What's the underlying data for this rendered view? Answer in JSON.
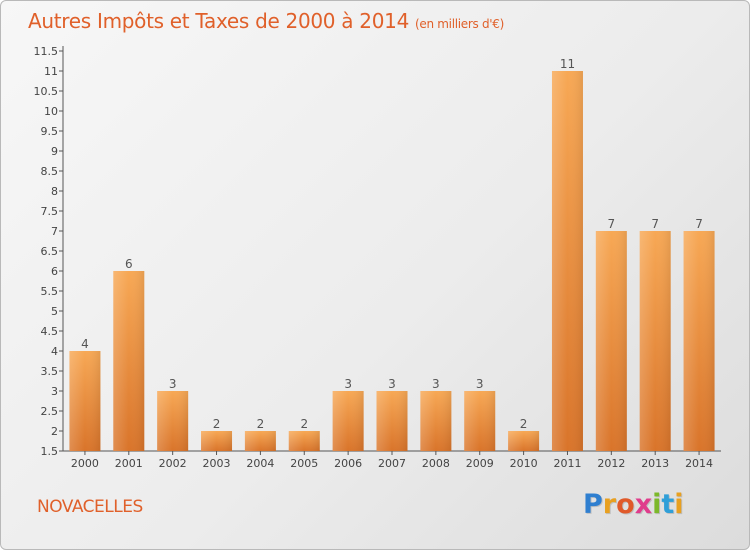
{
  "header": {
    "title": "Autres Impôts et Taxes de 2000 à 2014",
    "subtitle": "(en milliers d'€)"
  },
  "footer": {
    "town": "NOVACELLES",
    "logo_letters": [
      "P",
      "r",
      "o",
      "x",
      "i",
      "t",
      "i"
    ],
    "logo_colors": [
      "#2f7fd0",
      "#e8a020",
      "#e05a2a",
      "#e03c8c",
      "#7cb82a",
      "#2f9fd8",
      "#e8a020"
    ]
  },
  "colors": {
    "bar": "#ef8c3a",
    "bar_light": "#f7a85a",
    "bar_dark": "#d8762a",
    "title": "#e0602a"
  },
  "chart_data": {
    "type": "bar",
    "categories": [
      "2000",
      "2001",
      "2002",
      "2003",
      "2004",
      "2005",
      "2006",
      "2007",
      "2008",
      "2009",
      "2010",
      "2011",
      "2012",
      "2013",
      "2014"
    ],
    "values": [
      4,
      6,
      3,
      2,
      2,
      2,
      3,
      3,
      3,
      3,
      2,
      11,
      7,
      7,
      7
    ],
    "value_labels": [
      "4",
      "6",
      "3",
      "2",
      "2",
      "2",
      "3",
      "3",
      "3",
      "3",
      "2",
      "11",
      "7",
      "7",
      "7"
    ],
    "title": "Autres Impôts et Taxes de 2000 à 2014",
    "xlabel": "",
    "ylabel": "",
    "ylim": [
      1.5,
      11.5
    ],
    "yticks": [
      "1.5",
      "2",
      "2.5",
      "3",
      "3.5",
      "4",
      "4.5",
      "5",
      "5.5",
      "6",
      "6.5",
      "7",
      "7.5",
      "8",
      "8.5",
      "9",
      "9.5",
      "10",
      "10.5",
      "11",
      "11.5"
    ],
    "grid": false
  }
}
